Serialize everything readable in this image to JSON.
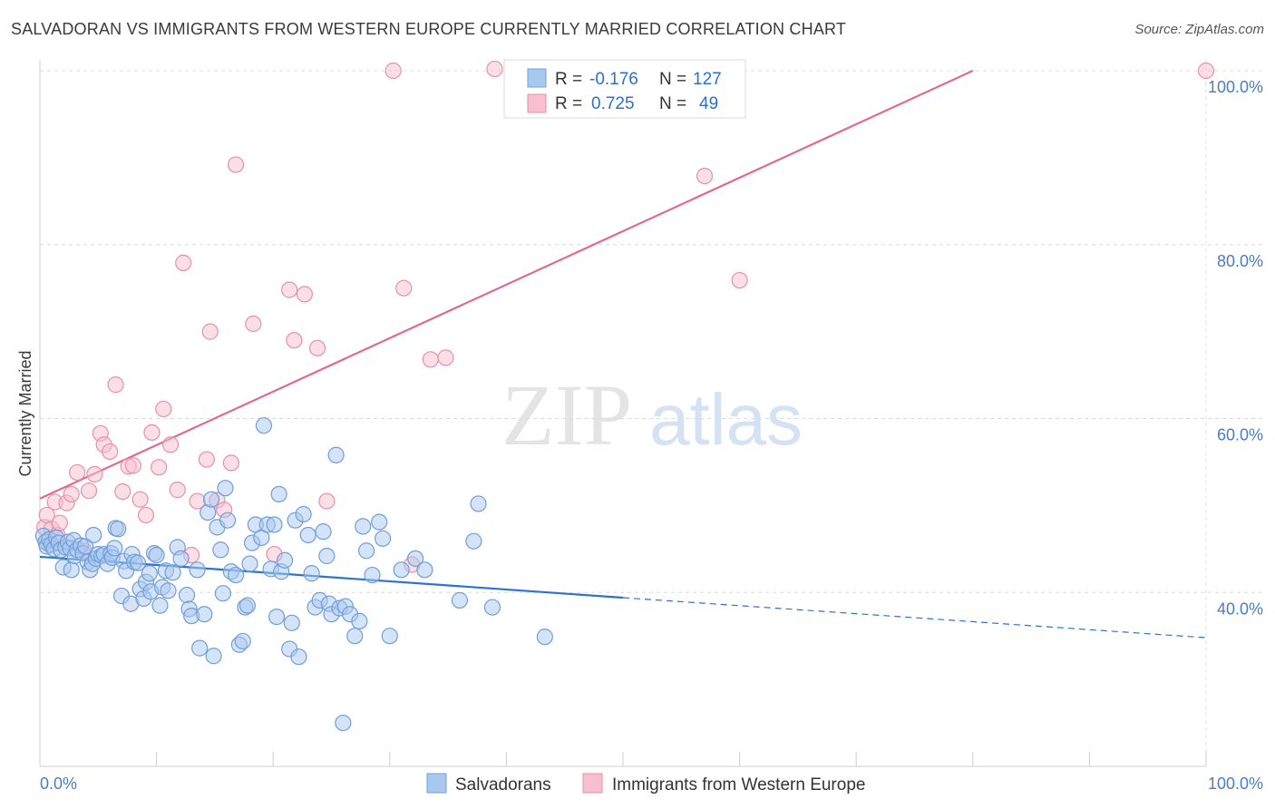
{
  "title": "SALVADORAN VS IMMIGRANTS FROM WESTERN EUROPE CURRENTLY MARRIED CORRELATION CHART",
  "source": "Source: ZipAtlas.com",
  "watermark": {
    "zip": "ZIP",
    "atlas": "atlas"
  },
  "colors": {
    "blue_fill": "#a9c8ef",
    "blue_stroke": "#6f9fd8",
    "blue_line": "#2d72d2",
    "pink_fill": "#f7bfd0",
    "pink_stroke": "#e88fab",
    "pink_line": "#e26a92",
    "axis_text": "#4a7cc9"
  },
  "legend": {
    "rows": [
      {
        "r_label": "R =",
        "r_value": "-0.176",
        "n_label": "N =",
        "n_value": "127",
        "series": "blue"
      },
      {
        "r_label": "R =",
        "r_value": "0.725",
        "n_label": "N =",
        "n_value": "49",
        "series": "pink"
      }
    ]
  },
  "chart_data": {
    "type": "scatter",
    "xlabel": "",
    "ylabel": "Currently Married",
    "xlim": [
      0,
      100
    ],
    "ylim": [
      20,
      100
    ],
    "x_tick_labels": [
      "0.0%",
      "100.0%"
    ],
    "y_tick_labels": [
      "40.0%",
      "60.0%",
      "80.0%",
      "100.0%"
    ],
    "y_ticks": [
      40,
      60,
      80,
      100
    ],
    "grid": true,
    "legend_position": "bottom",
    "series": [
      {
        "name": "Salvadorans",
        "color": "blue",
        "trend": {
          "x": [
            0,
            50,
            100
          ],
          "y": [
            44.1,
            39.4,
            34.8
          ],
          "solid_until": 50
        },
        "points": [
          [
            0.3,
            46.5
          ],
          [
            0.5,
            45.8
          ],
          [
            0.6,
            45.3
          ],
          [
            0.8,
            46.1
          ],
          [
            1,
            45.5
          ],
          [
            1.2,
            45
          ],
          [
            1.4,
            46.3
          ],
          [
            1.6,
            45.7
          ],
          [
            1.8,
            44.9
          ],
          [
            2,
            42.9
          ],
          [
            2.2,
            45.2
          ],
          [
            2.4,
            45.8
          ],
          [
            2.6,
            45.1
          ],
          [
            2.7,
            42.6
          ],
          [
            2.9,
            46
          ],
          [
            3,
            44.2
          ],
          [
            3.2,
            44.9
          ],
          [
            3.5,
            45.4
          ],
          [
            3.7,
            44.5
          ],
          [
            3.9,
            45.3
          ],
          [
            4.1,
            43.5
          ],
          [
            4.3,
            42.6
          ],
          [
            4.5,
            43.3
          ],
          [
            4.6,
            46.6
          ],
          [
            4.8,
            43.9
          ],
          [
            5,
            44.4
          ],
          [
            5.3,
            44.2
          ],
          [
            5.5,
            44.4
          ],
          [
            5.8,
            43.3
          ],
          [
            6.1,
            44.5
          ],
          [
            6.2,
            44
          ],
          [
            6.4,
            45.1
          ],
          [
            6.5,
            47.4
          ],
          [
            6.7,
            47.3
          ],
          [
            7,
            39.6
          ],
          [
            7.2,
            43.6
          ],
          [
            7.4,
            42.5
          ],
          [
            7.8,
            38.7
          ],
          [
            7.9,
            44.4
          ],
          [
            8.1,
            43.5
          ],
          [
            8.4,
            43.4
          ],
          [
            8.6,
            40.4
          ],
          [
            8.9,
            39.3
          ],
          [
            9.1,
            41.2
          ],
          [
            9.4,
            42.2
          ],
          [
            9.5,
            40.1
          ],
          [
            9.8,
            44.5
          ],
          [
            10,
            44.3
          ],
          [
            10.3,
            38.5
          ],
          [
            10.5,
            40.6
          ],
          [
            10.8,
            42.5
          ],
          [
            11,
            40.2
          ],
          [
            11.4,
            42.3
          ],
          [
            11.8,
            45.2
          ],
          [
            12.1,
            43.9
          ],
          [
            12.6,
            39.7
          ],
          [
            12.8,
            38.1
          ],
          [
            13,
            37.3
          ],
          [
            13.5,
            42.6
          ],
          [
            13.7,
            33.6
          ],
          [
            14.1,
            37.5
          ],
          [
            14.4,
            49.2
          ],
          [
            14.7,
            50.7
          ],
          [
            14.9,
            32.7
          ],
          [
            15.2,
            47.5
          ],
          [
            15.5,
            44.9
          ],
          [
            15.7,
            39.9
          ],
          [
            15.9,
            52
          ],
          [
            16.1,
            48.3
          ],
          [
            16.4,
            42.4
          ],
          [
            16.8,
            42
          ],
          [
            17.1,
            34
          ],
          [
            17.4,
            34.4
          ],
          [
            17.6,
            38.3
          ],
          [
            17.8,
            38.5
          ],
          [
            18,
            43.3
          ],
          [
            18.2,
            45.7
          ],
          [
            18.5,
            47.8
          ],
          [
            19,
            46.3
          ],
          [
            19.2,
            59.2
          ],
          [
            19.5,
            47.8
          ],
          [
            19.8,
            42.7
          ],
          [
            20.1,
            47.8
          ],
          [
            20.3,
            37.2
          ],
          [
            20.5,
            51.3
          ],
          [
            20.7,
            42.4
          ],
          [
            21,
            43.7
          ],
          [
            21.4,
            33.5
          ],
          [
            21.6,
            36.5
          ],
          [
            21.9,
            48.3
          ],
          [
            22.2,
            32.6
          ],
          [
            22.6,
            49
          ],
          [
            23,
            46.6
          ],
          [
            23.3,
            42.2
          ],
          [
            23.6,
            38.3
          ],
          [
            24,
            39.1
          ],
          [
            24.3,
            47
          ],
          [
            24.6,
            44.2
          ],
          [
            24.8,
            38.7
          ],
          [
            25,
            37.5
          ],
          [
            25.4,
            55.8
          ],
          [
            25.7,
            38.2
          ],
          [
            26,
            25
          ],
          [
            26.2,
            38.4
          ],
          [
            26.6,
            37.5
          ],
          [
            27,
            35
          ],
          [
            27.4,
            36.7
          ],
          [
            27.7,
            47.6
          ],
          [
            28,
            44.8
          ],
          [
            28.5,
            42
          ],
          [
            29.1,
            48.1
          ],
          [
            29.4,
            46.2
          ],
          [
            30,
            35
          ],
          [
            31,
            42.6
          ],
          [
            32.2,
            43.9
          ],
          [
            33,
            42.6
          ],
          [
            36,
            39.1
          ],
          [
            37.2,
            45.9
          ],
          [
            37.6,
            50.2
          ],
          [
            38.8,
            38.3
          ],
          [
            43.3,
            34.9
          ]
        ]
      },
      {
        "name": "Immigrants from Western Europe",
        "color": "pink",
        "trend": {
          "x": [
            0,
            80
          ],
          "y": [
            50.8,
            100
          ]
        },
        "points": [
          [
            0.4,
            47.5
          ],
          [
            0.6,
            48.9
          ],
          [
            0.8,
            45.5
          ],
          [
            1,
            47.3
          ],
          [
            1.3,
            50.4
          ],
          [
            1.5,
            46.6
          ],
          [
            1.7,
            48
          ],
          [
            2.3,
            50.3
          ],
          [
            2.7,
            51.3
          ],
          [
            3.2,
            53.8
          ],
          [
            3.8,
            44.8
          ],
          [
            4.2,
            51.7
          ],
          [
            4.7,
            53.6
          ],
          [
            5.2,
            58.3
          ],
          [
            5.5,
            57
          ],
          [
            6,
            56.2
          ],
          [
            6.5,
            63.9
          ],
          [
            7.1,
            51.6
          ],
          [
            7.6,
            54.5
          ],
          [
            8,
            54.6
          ],
          [
            8.6,
            50.7
          ],
          [
            9.1,
            48.9
          ],
          [
            9.6,
            58.4
          ],
          [
            10.2,
            54.4
          ],
          [
            10.6,
            61.1
          ],
          [
            11.2,
            57
          ],
          [
            11.8,
            51.8
          ],
          [
            12.3,
            77.9
          ],
          [
            13,
            44.3
          ],
          [
            13.5,
            50.5
          ],
          [
            14.3,
            55.3
          ],
          [
            14.6,
            70
          ],
          [
            15.2,
            50.6
          ],
          [
            15.8,
            49.5
          ],
          [
            16.4,
            54.9
          ],
          [
            16.8,
            89.2
          ],
          [
            18.3,
            70.9
          ],
          [
            20.1,
            44.4
          ],
          [
            21.4,
            74.8
          ],
          [
            21.8,
            69
          ],
          [
            22.7,
            74.3
          ],
          [
            23.8,
            68.1
          ],
          [
            24.6,
            50.5
          ],
          [
            30.3,
            100
          ],
          [
            31.2,
            75
          ],
          [
            31.9,
            43.2
          ],
          [
            33.5,
            66.8
          ],
          [
            34.8,
            67
          ],
          [
            39,
            100.2
          ],
          [
            41,
            100
          ],
          [
            57,
            87.9
          ],
          [
            60,
            75.9
          ],
          [
            100,
            100
          ]
        ]
      }
    ]
  }
}
